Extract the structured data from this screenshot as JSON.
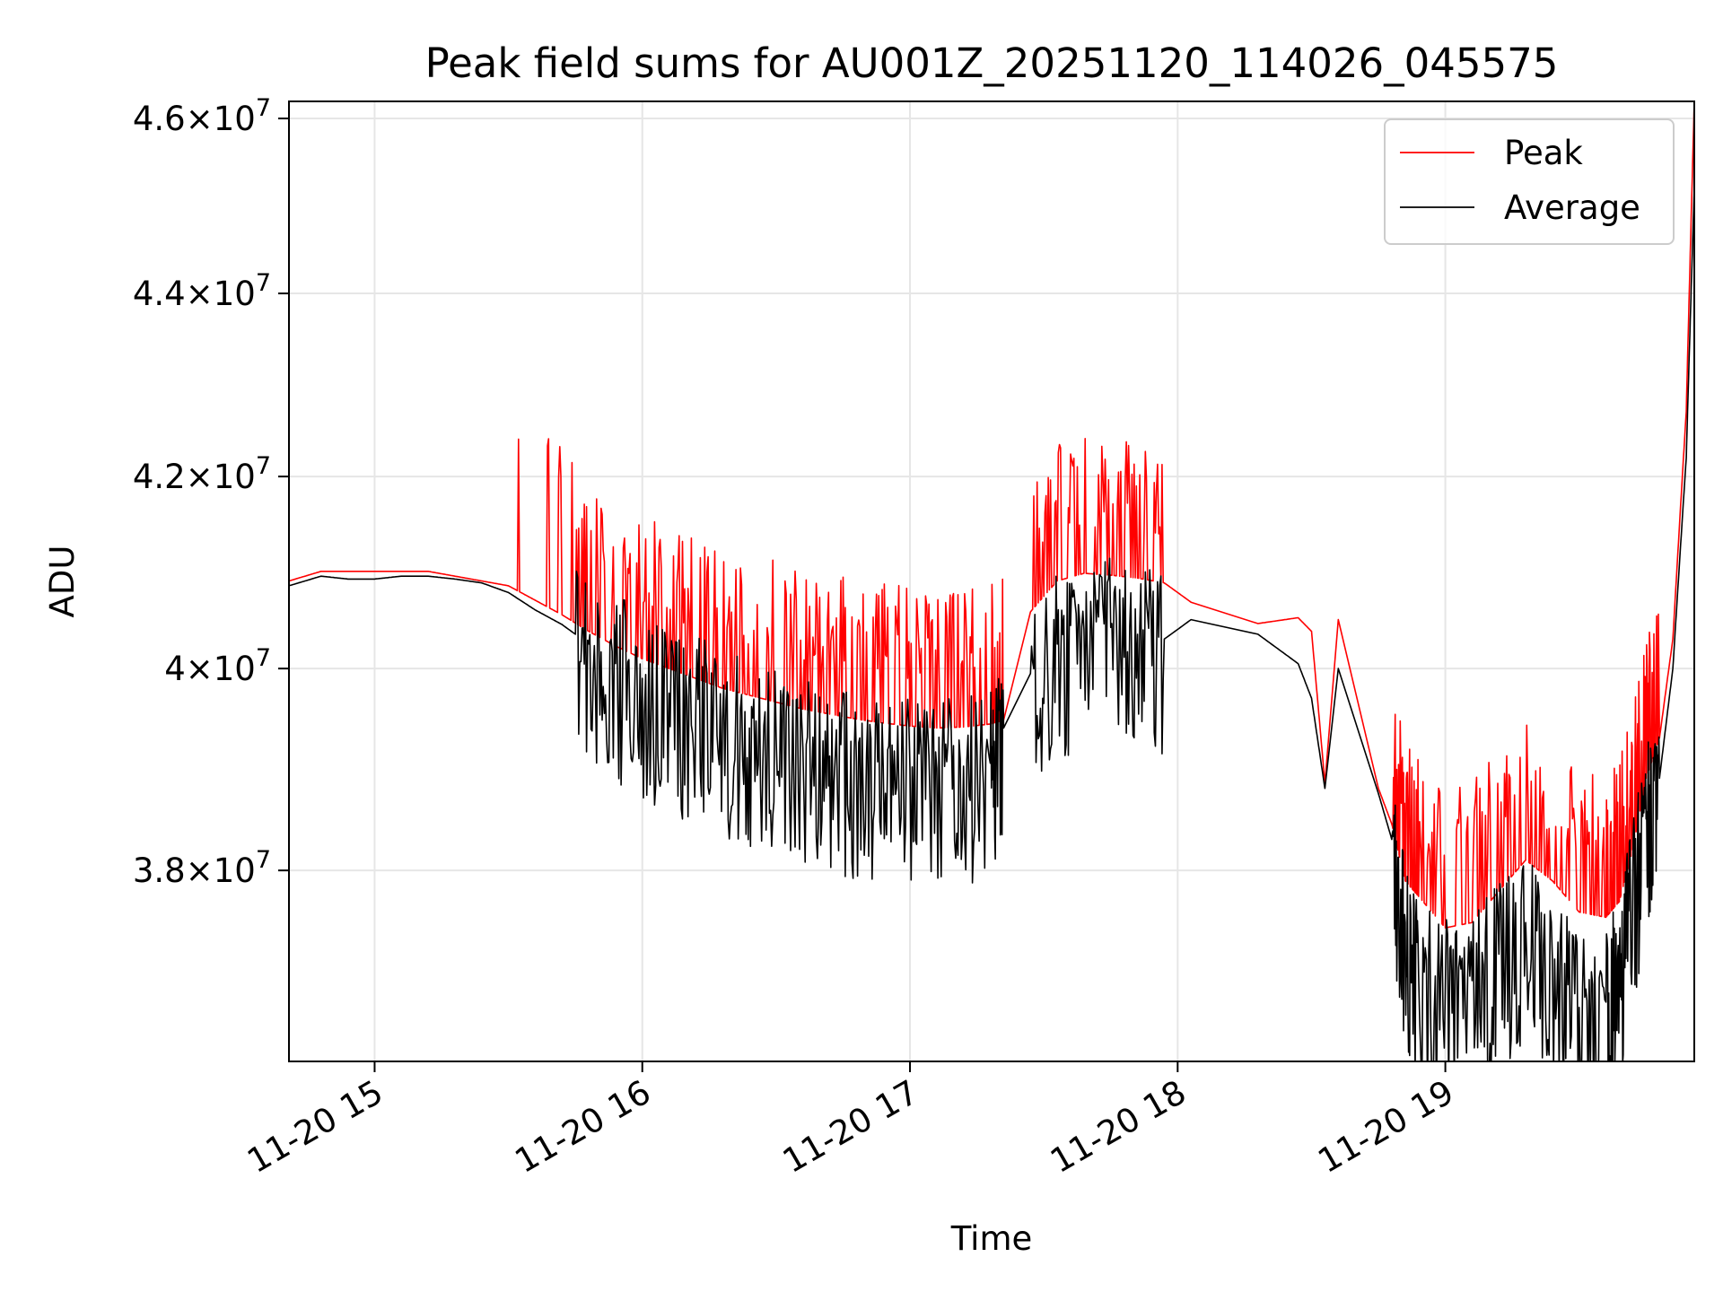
{
  "chart_data": {
    "type": "line",
    "title": "Peak field sums for AU001Z_20251120_114026_045575",
    "xlabel": "Time",
    "ylabel": "ADU",
    "y_scale": "log",
    "ylim": [
      36200000,
      46200000
    ],
    "xlim_hours": [
      14.68,
      19.93
    ],
    "grid": true,
    "legend_position": "upper right",
    "x_ticks": [
      {
        "value": 15,
        "label": "11-20 15"
      },
      {
        "value": 16,
        "label": "11-20 16"
      },
      {
        "value": 17,
        "label": "11-20 17"
      },
      {
        "value": 18,
        "label": "11-20 18"
      },
      {
        "value": 19,
        "label": "11-20 19"
      }
    ],
    "y_ticks": [
      {
        "value": 38000000,
        "mantissa": "3.8",
        "exponent": "7"
      },
      {
        "value": 40000000,
        "mantissa": "4",
        "exponent": "7"
      },
      {
        "value": 42000000,
        "mantissa": "4.2",
        "exponent": "7"
      },
      {
        "value": 44000000,
        "mantissa": "4.4",
        "exponent": "7"
      },
      {
        "value": 46000000,
        "mantissa": "4.6",
        "exponent": "7"
      }
    ],
    "times_label_base": "11-20",
    "series": [
      {
        "name": "Peak",
        "color": "#ff0000",
        "x": [
          14.68,
          14.8,
          14.9,
          15.0,
          15.1,
          15.2,
          15.3,
          15.4,
          15.5,
          15.6,
          15.7,
          15.8,
          15.9,
          16.0,
          16.1,
          16.2,
          16.3,
          16.4,
          16.5,
          16.6,
          16.7,
          16.8,
          16.9,
          17.0,
          17.1,
          17.2,
          17.3,
          17.35,
          17.45,
          17.55,
          17.65,
          17.75,
          17.85,
          17.95,
          18.05,
          18.3,
          18.45,
          18.5,
          18.55,
          18.6,
          18.75,
          18.8,
          18.85,
          18.9,
          19.0,
          19.1,
          19.2,
          19.3,
          19.4,
          19.5,
          19.6,
          19.65,
          19.7,
          19.75,
          19.8,
          19.85,
          19.9,
          19.93
        ],
        "values": [
          40900000,
          41000000,
          41000000,
          41000000,
          41000000,
          41000000,
          40950000,
          40900000,
          40850000,
          40700000,
          40550000,
          40380000,
          40230000,
          40100000,
          40000000,
          39900000,
          39800000,
          39730000,
          39660000,
          39590000,
          39540000,
          39490000,
          39450000,
          39420000,
          39400000,
          39410000,
          39440000,
          39480000,
          40580000,
          40900000,
          40980000,
          40960000,
          40930000,
          40880000,
          40680000,
          40460000,
          40520000,
          40380000,
          38850000,
          40500000,
          38800000,
          38450000,
          37900000,
          37750000,
          37450000,
          37500000,
          37800000,
          38100000,
          37900000,
          37600000,
          37550000,
          37700000,
          38200000,
          38900000,
          39300000,
          40300000,
          42700000,
          46200000
        ]
      },
      {
        "name": "Average",
        "color": "#000000",
        "x": [
          14.68,
          14.8,
          14.9,
          15.0,
          15.1,
          15.2,
          15.3,
          15.4,
          15.5,
          15.6,
          15.7,
          15.8,
          15.9,
          16.0,
          16.1,
          16.2,
          16.3,
          16.4,
          16.5,
          16.6,
          16.7,
          16.8,
          16.9,
          17.0,
          17.1,
          17.2,
          17.3,
          17.35,
          17.45,
          17.55,
          17.65,
          17.75,
          17.85,
          17.95,
          18.05,
          18.3,
          18.45,
          18.5,
          18.55,
          18.6,
          18.75,
          18.8,
          18.85,
          18.9,
          19.0,
          19.1,
          19.2,
          19.3,
          19.4,
          19.5,
          19.6,
          19.65,
          19.7,
          19.75,
          19.8,
          19.85,
          19.9,
          19.93
        ],
        "values": [
          40850000,
          40950000,
          40920000,
          40920000,
          40950000,
          40950000,
          40920000,
          40880000,
          40780000,
          40600000,
          40450000,
          40250000,
          40050000,
          39900000,
          39750000,
          39620000,
          39500000,
          39400000,
          39300000,
          39200000,
          39120000,
          39060000,
          39020000,
          39000000,
          39000000,
          39020000,
          39050000,
          39400000,
          39950000,
          40250000,
          40400000,
          40420000,
          40350000,
          40300000,
          40500000,
          40350000,
          40050000,
          39700000,
          38800000,
          40000000,
          38750000,
          38300000,
          37500000,
          37000000,
          36900000,
          36950000,
          37200000,
          37500000,
          37150000,
          36700000,
          36750000,
          37100000,
          37800000,
          38500000,
          38900000,
          40000000,
          42200000,
          45200000
        ]
      }
    ]
  }
}
